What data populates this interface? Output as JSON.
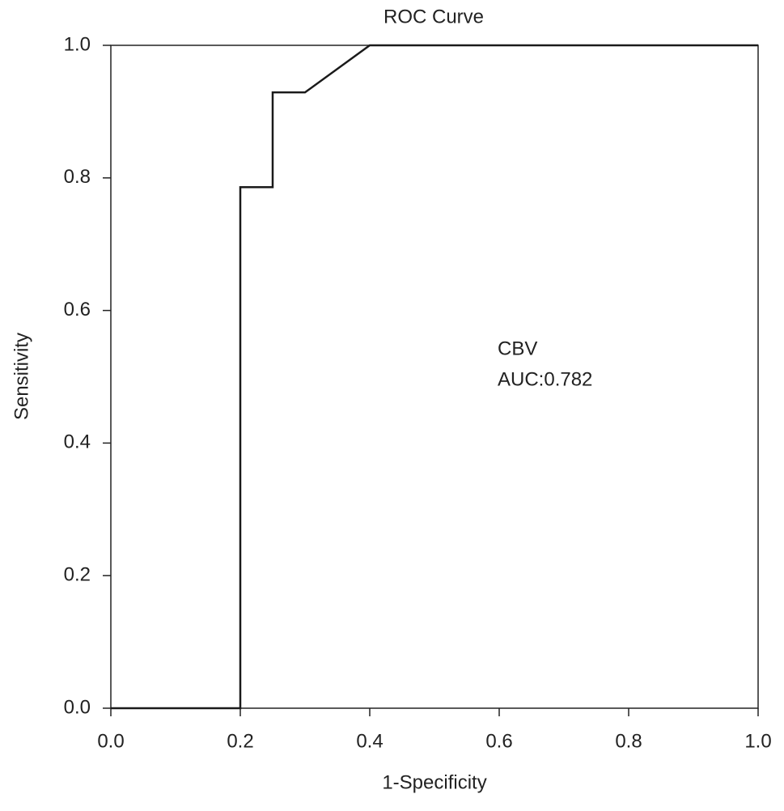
{
  "chart_data": {
    "type": "line",
    "title": "ROC Curve",
    "x_label": "1-Specificity",
    "y_label": "Sensitivity",
    "x": [
      0,
      0.2,
      0.2,
      0.25,
      0.25,
      0.3,
      0.4,
      1
    ],
    "values": [
      0,
      0,
      0.786,
      0.786,
      0.929,
      0.929,
      1,
      1
    ],
    "color": "#1a1a1a",
    "xlim": [
      0,
      1
    ],
    "ylim": [
      0,
      1
    ],
    "xticks": [
      {
        "value": 0,
        "label": "0.0"
      },
      0.2,
      0.4,
      0.6,
      0.8,
      {
        "value": 1,
        "label": "1.0"
      }
    ],
    "yticks": [
      {
        "value": 0,
        "label": "0.0"
      },
      0.2,
      0.4,
      0.6,
      0.8,
      {
        "value": 1,
        "label": "1.0"
      }
    ],
    "annotations": [
      "CBV",
      "AUC:0.782"
    ]
  }
}
